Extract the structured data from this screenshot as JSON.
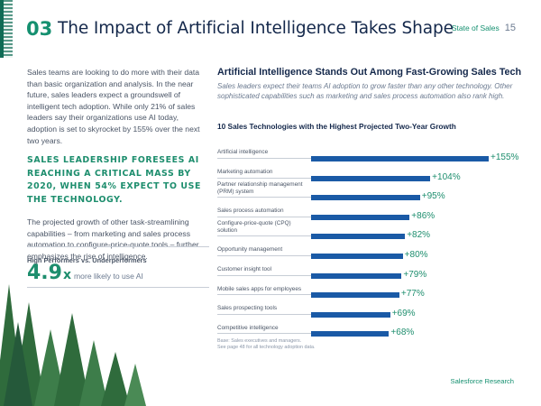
{
  "header": {
    "section_number": "03",
    "title": "The Impact of Artificial Intelligence Takes Shape",
    "report_name": "State of Sales",
    "page_number": "15"
  },
  "left": {
    "intro": "Sales teams are looking to do more with their data than basic organization and analysis. In the near future, sales leaders expect a groundswell of intelligent tech adoption. While only 21% of sales leaders say their organizations use AI today, adoption is set to skyrocket by 155% over the next two years.",
    "callout": "Sales leadership foresees AI reaching a critical mass by 2020, when 54% expect to use the technology.",
    "projection": "The projected growth of other task-streamlining capabilities – from marketing and sales process automation to configure-price-quote tools – further emphasizes the rise of intelligence.",
    "stat_label": "High Performers vs. Underperformers",
    "stat_value": "4.9",
    "stat_unit": "x",
    "stat_desc": "more likely to use AI"
  },
  "right": {
    "heading": "Artificial Intelligence Stands Out Among Fast-Growing Sales Tech",
    "subheading": "Sales leaders expect their teams AI adoption to grow faster than any other technology. Other sophisticated capabilities such as marketing and sales process automation also rank high.",
    "footnote_line1": "Base: Sales executives and managers.",
    "footnote_line2": "See page 48 for all technology adoption data."
  },
  "chart_data": {
    "type": "bar",
    "title": "10 Sales Technologies with the Highest Projected Two-Year Growth",
    "categories": [
      "Artificial intelligence",
      "Marketing automation",
      "Partner relationship management (PRM) system",
      "Sales process automation",
      "Configure-price-quote (CPQ) solution",
      "Opportunity management",
      "Customer insight tool",
      "Mobile sales apps for employees",
      "Sales prospecting tools",
      "Competitive intelligence"
    ],
    "values": [
      155,
      104,
      95,
      86,
      82,
      80,
      79,
      77,
      69,
      68
    ],
    "value_labels": [
      "+155%",
      "+104%",
      "+95%",
      "+86%",
      "+82%",
      "+80%",
      "+79%",
      "+77%",
      "+69%",
      "+68%"
    ],
    "xlim": [
      0,
      155
    ],
    "bar_color": "#1a5aa6",
    "label_color": "#1e8e6e"
  },
  "footer": {
    "brand": "Salesforce Research"
  },
  "colors": {
    "accent_green": "#159070",
    "navy": "#14284b",
    "bar_blue": "#1a5aa6",
    "tree_green": "#2f6b3c"
  }
}
